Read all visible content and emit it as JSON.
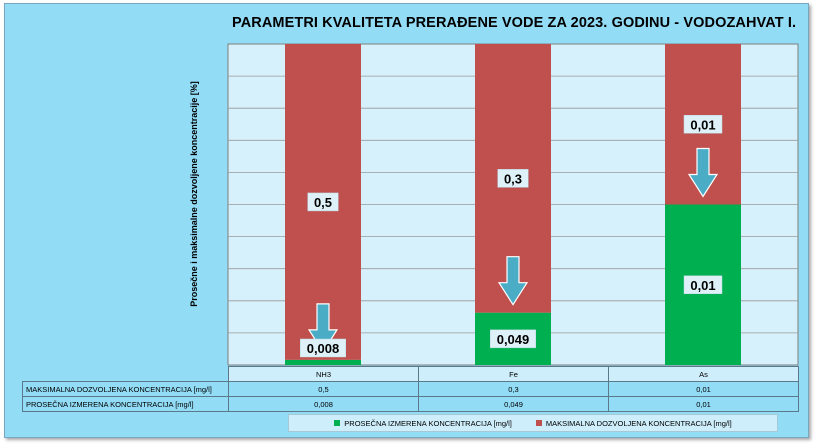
{
  "chart_data": {
    "type": "bar",
    "stacked": true,
    "title": "PARAMETRI  KVALITETA PRERAĐENE VODE ZA 2023. GODINU - VODOZAHVAT I.",
    "ylabel": "Prosečne i maksimalne dozvoljene koncentracije [%]",
    "ylim": [
      0,
      100
    ],
    "grid": true,
    "categories": [
      "NH3",
      "Fe",
      "As"
    ],
    "series": [
      {
        "name": "PROSEČNA IZMERENA KONCENTRACIJA [mg/l]",
        "values": [
          "0,008",
          "0,049",
          "0,01"
        ],
        "percent": [
          1.6,
          16.3,
          50
        ],
        "color": "#00b050"
      },
      {
        "name": "MAKSIMALNA DOZVOLJENA KONCENTRACIJA [mg/l]",
        "values": [
          "0,5",
          "0,3",
          "0,01"
        ],
        "percent": [
          98.4,
          83.7,
          50
        ],
        "color": "#c0504d"
      }
    ],
    "legend": "bottom"
  },
  "table": {
    "rows": [
      {
        "label": "MAKSIMALNA DOZVOLJENA KONCENTRACIJA [mg/l]",
        "values": [
          "0,5",
          "0,3",
          "0,01"
        ]
      },
      {
        "label": "PROSEČNA IZMERENA KONCENTRACIJA [mg/l]",
        "values": [
          "0,008",
          "0,049",
          "0,01"
        ]
      }
    ]
  },
  "colors": {
    "frame": "#93dcf6",
    "plot_bg": "#d6f1fb",
    "arrow": "#4bacc6"
  }
}
